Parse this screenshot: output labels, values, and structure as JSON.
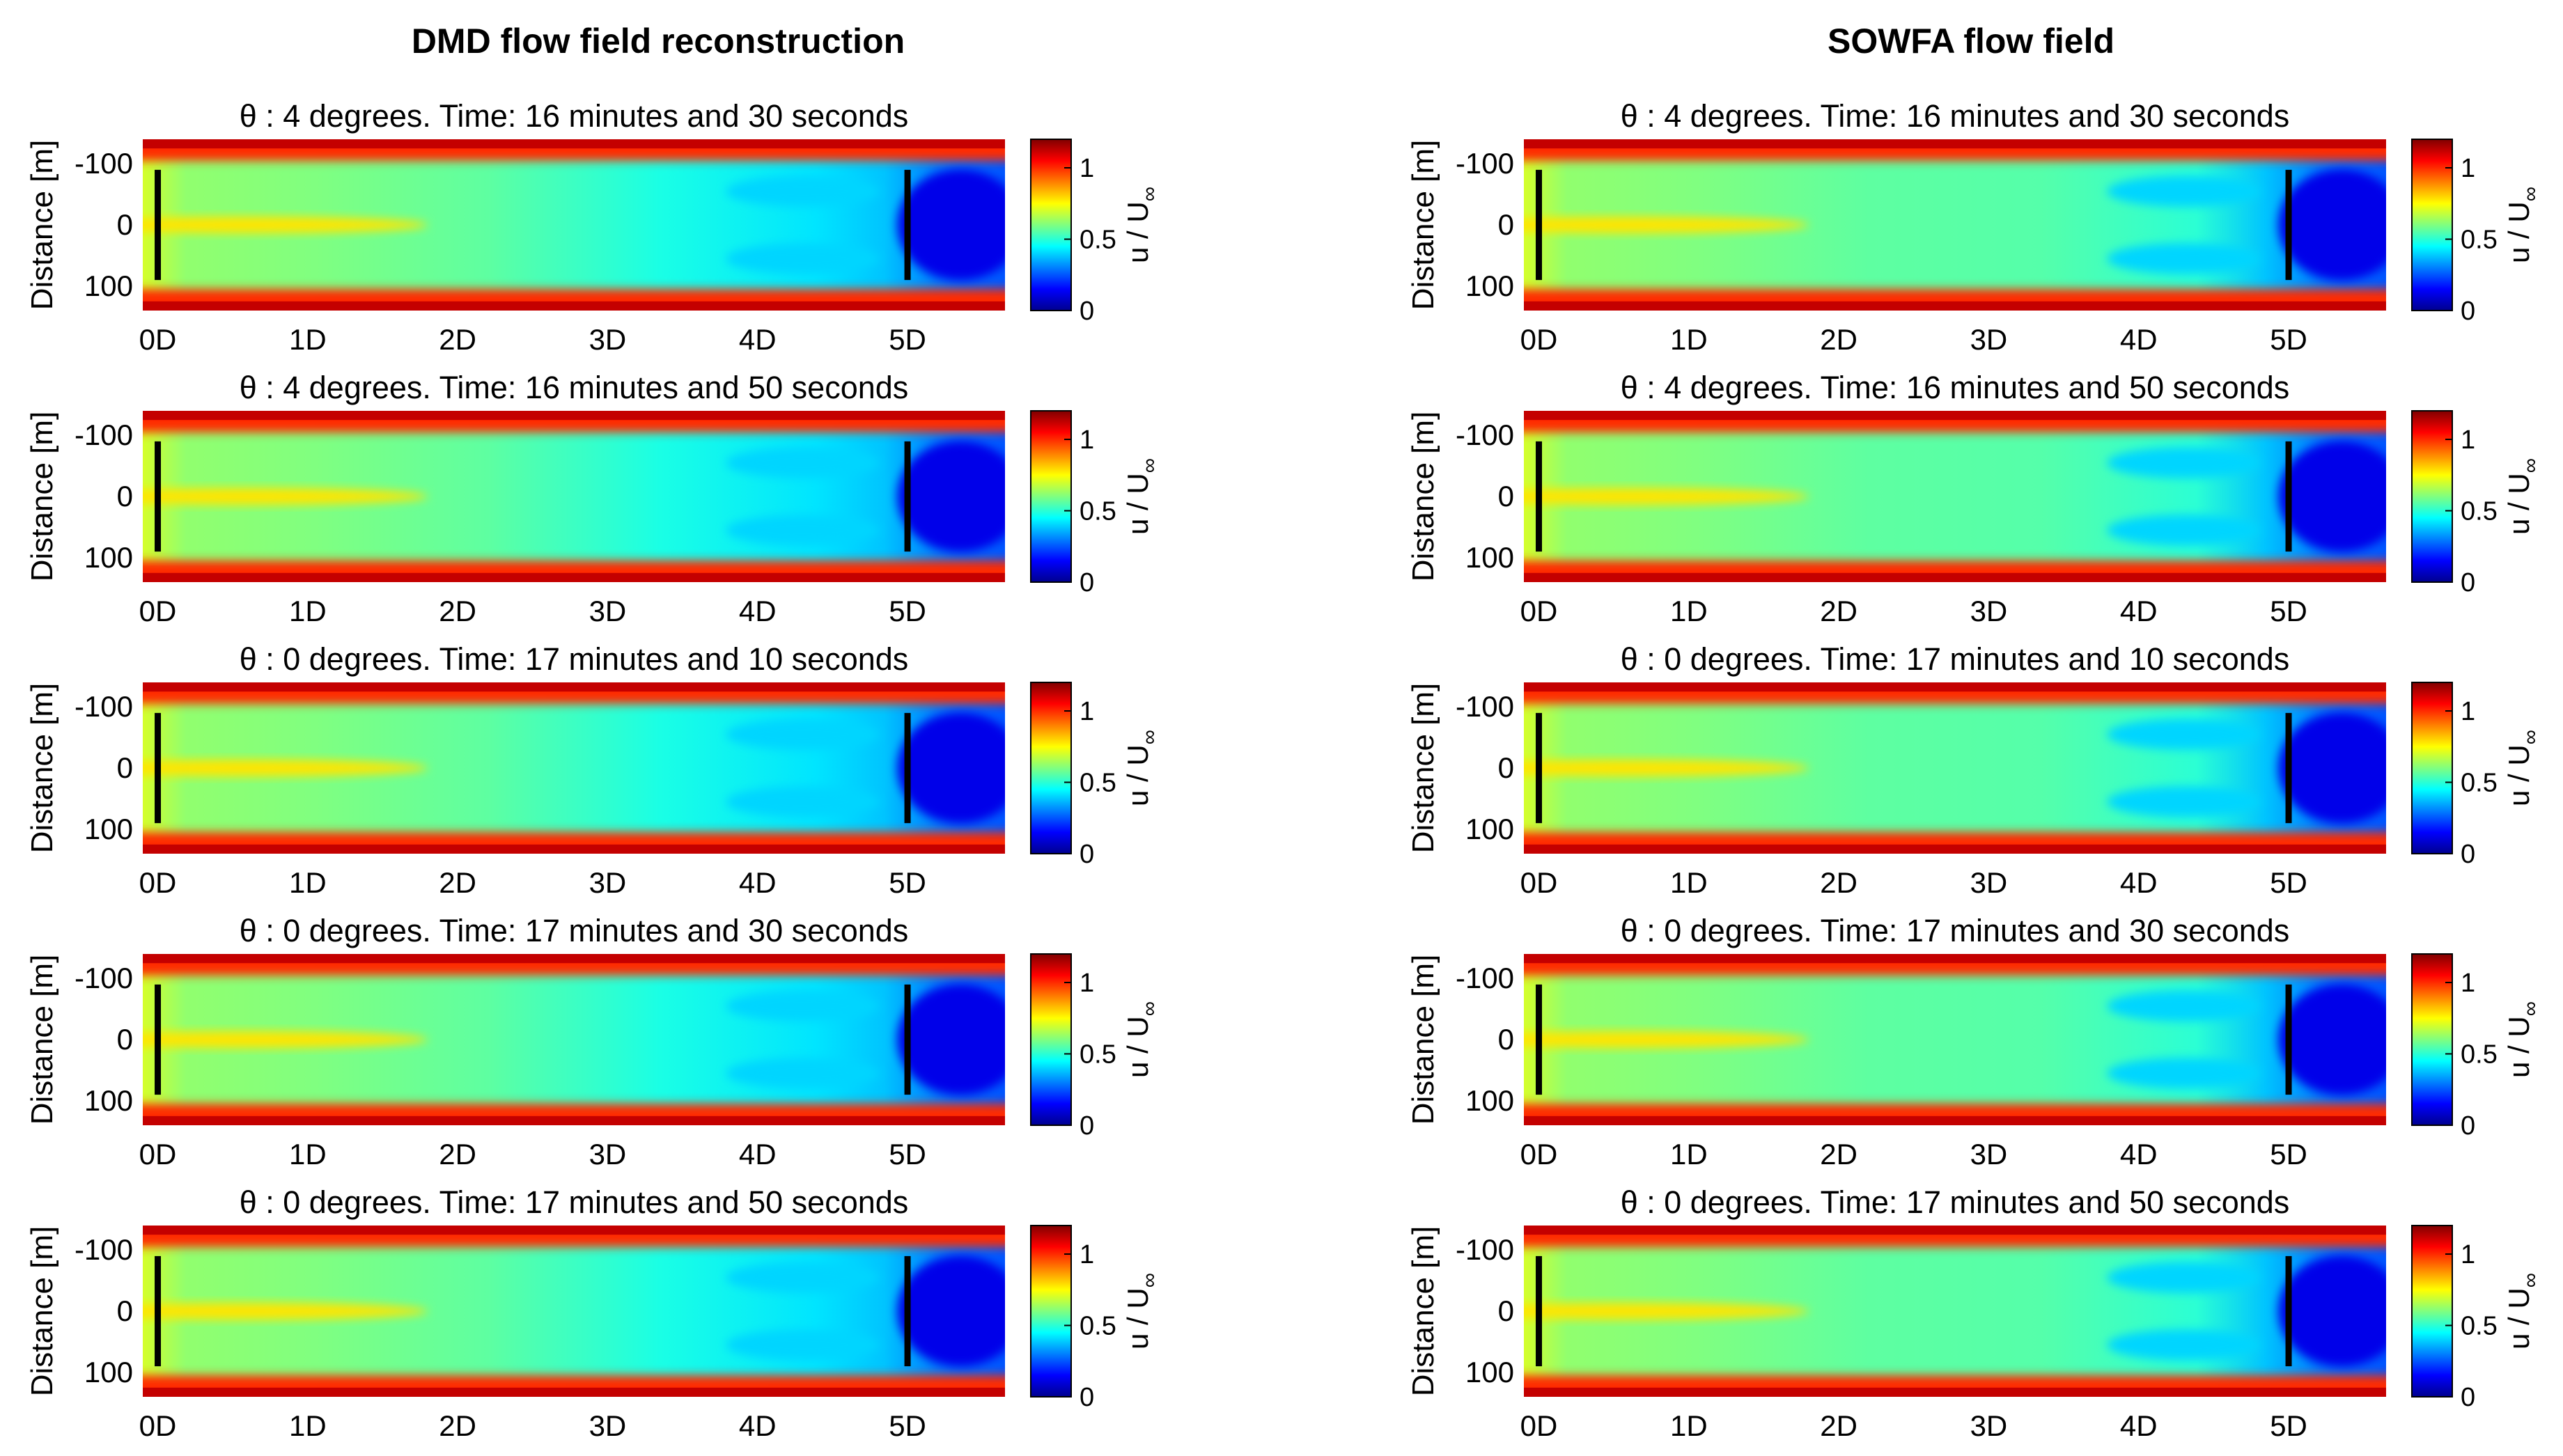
{
  "chart_data": {
    "type": "heatmap",
    "columns": [
      {
        "title": "DMD flow field reconstruction",
        "panels": [
          {
            "title": "θ : 4 degrees. Time: 16 minutes and 30 seconds",
            "theta_deg": 4,
            "time": "16 minutes and 30 seconds"
          },
          {
            "title": "θ : 4 degrees. Time: 16 minutes and 50 seconds",
            "theta_deg": 4,
            "time": "16 minutes and 50 seconds"
          },
          {
            "title": "θ : 0 degrees. Time: 17 minutes and 10 seconds",
            "theta_deg": 0,
            "time": "17 minutes and 10 seconds"
          },
          {
            "title": "θ : 0 degrees. Time: 17 minutes and 30 seconds",
            "theta_deg": 0,
            "time": "17 minutes and 30 seconds"
          },
          {
            "title": "θ : 0 degrees. Time: 17 minutes and 50 seconds",
            "theta_deg": 0,
            "time": "17 minutes and 50 seconds"
          }
        ]
      },
      {
        "title": "SOWFA flow field",
        "panels": [
          {
            "title": "θ : 4 degrees. Time: 16 minutes and 30 seconds",
            "theta_deg": 4,
            "time": "16 minutes and 30 seconds"
          },
          {
            "title": "θ : 4 degrees. Time: 16 minutes and 50 seconds",
            "theta_deg": 4,
            "time": "16 minutes and 50 seconds"
          },
          {
            "title": "θ : 0 degrees. Time: 17 minutes and 10 seconds",
            "theta_deg": 0,
            "time": "17 minutes and 10 seconds"
          },
          {
            "title": "θ : 0 degrees. Time: 17 minutes and 30 seconds",
            "theta_deg": 0,
            "time": "17 minutes and 30 seconds"
          },
          {
            "title": "θ : 0 degrees. Time: 17 minutes and 50 seconds",
            "theta_deg": 0,
            "time": "17 minutes and 50 seconds"
          }
        ]
      }
    ],
    "xlabel": "",
    "ylabel": "Distance [m]",
    "x_tick_labels": [
      "0D",
      "1D",
      "2D",
      "3D",
      "4D",
      "5D"
    ],
    "x_tick_values": [
      0,
      1,
      2,
      3,
      4,
      5
    ],
    "xlim": [
      -0.1,
      5.65
    ],
    "y_tick_labels": [
      "-100",
      "0",
      "100"
    ],
    "y_tick_values": [
      -100,
      0,
      100
    ],
    "ylim": [
      -140,
      140
    ],
    "turbine_positions_D": [
      0,
      5
    ],
    "turbine_extent_m": [
      -90,
      90
    ],
    "colorbar": {
      "label": "u / U∞",
      "label_main": "u / U",
      "label_sub": "∞",
      "range": [
        0,
        1.2
      ],
      "ticks": [
        0,
        0.5,
        1
      ],
      "tick_labels": [
        "0",
        "0.5",
        "1"
      ],
      "colormap": "jet"
    },
    "colors": {
      "dark_blue": "#00008f",
      "blue": "#0000ff",
      "cyan": "#00ffff",
      "yellow": "#ffff00",
      "red": "#ff0000",
      "dark_red": "#800000",
      "turbine": "#000000"
    }
  }
}
